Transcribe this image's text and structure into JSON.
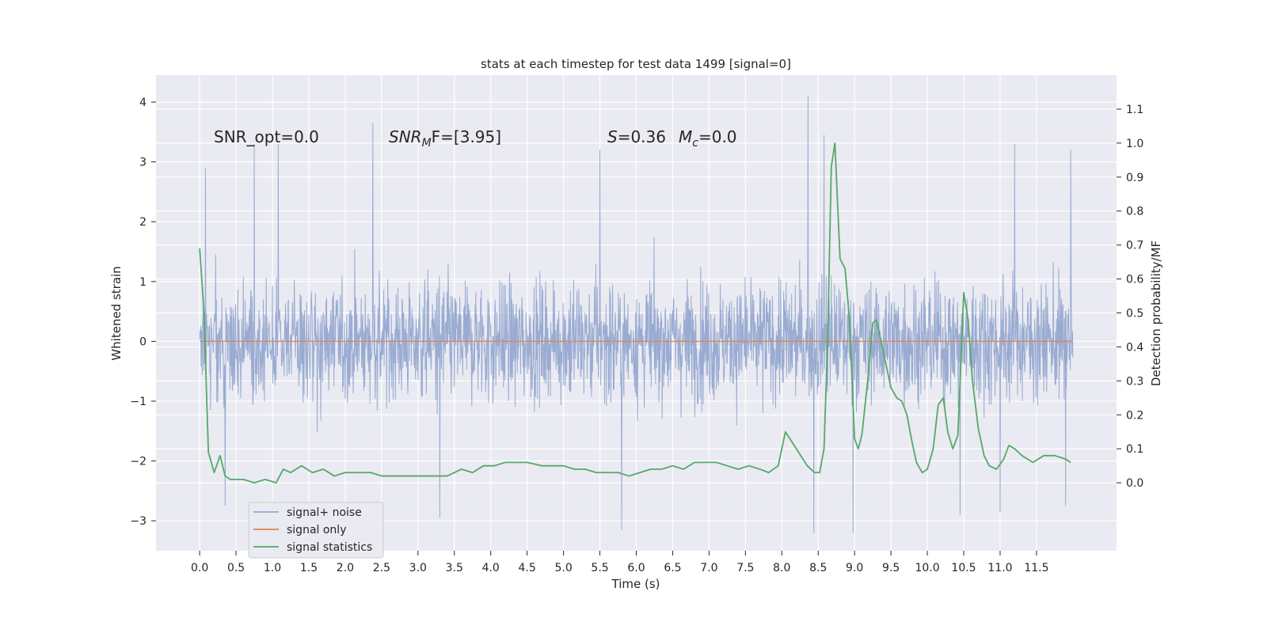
{
  "chart_data": {
    "type": "line",
    "title": "stats at each timestep for test data 1499 [signal=0]",
    "xlabel": "Time (s)",
    "ylabel": "Whitened strain",
    "ylabel_right": "Detection probability/MF",
    "xlim": [
      -0.6,
      12.6
    ],
    "ylim": [
      -3.5,
      4.45
    ],
    "ylim_right": [
      -0.2,
      1.2
    ],
    "xticks": [
      0.0,
      0.5,
      1.0,
      1.5,
      2.0,
      2.5,
      3.0,
      3.5,
      4.0,
      4.5,
      5.0,
      5.5,
      6.0,
      6.5,
      7.0,
      7.5,
      8.0,
      8.5,
      9.0,
      9.5,
      10.0,
      10.5,
      11.0,
      11.5
    ],
    "xtick_labels": [
      "0.0",
      "0.5",
      "1.0",
      "1.5",
      "2.0",
      "2.5",
      "3.0",
      "3.5",
      "4.0",
      "4.5",
      "5.0",
      "5.5",
      "6.0",
      "6.5",
      "7.0",
      "7.5",
      "8.0",
      "8.5",
      "9.0",
      "9.5",
      "10.0",
      "10.5",
      "11.0",
      "11.5"
    ],
    "yticks_left": [
      -3,
      -2,
      -1,
      0,
      1,
      2,
      3,
      4
    ],
    "ytick_labels_left": [
      "−3",
      "−2",
      "−1",
      "0",
      "1",
      "2",
      "3",
      "4"
    ],
    "yticks_right": [
      0.0,
      0.1,
      0.2,
      0.3,
      0.4,
      0.5,
      0.6,
      0.7,
      0.8,
      0.9,
      1.0,
      1.1
    ],
    "ytick_labels_right": [
      "0.0",
      "0.1",
      "0.2",
      "0.3",
      "0.4",
      "0.5",
      "0.6",
      "0.7",
      "0.8",
      "0.9",
      "1.0",
      "1.1"
    ],
    "grid": true,
    "legend_position": "lower-left",
    "annotations": {
      "snr_opt": "SNR_opt=0.0",
      "snr_mf_main": "SNR",
      "snr_mf_sub": "M",
      "snr_mf_tail": "F=[3.95]",
      "s_main": "S",
      "s_tail": "=0.36",
      "mc_main": "M",
      "mc_sub": "c",
      "mc_tail": "=0.0"
    },
    "noise_summary": {
      "name": "signal+ noise",
      "color": "#95a8cf",
      "x_start": 0.0,
      "x_end": 12.0,
      "dense_band": [
        -1.25,
        1.6
      ],
      "typical_extent": [
        -2.3,
        2.15
      ],
      "notable_peaks": [
        {
          "x": 0.08,
          "y": 2.9
        },
        {
          "x": 0.75,
          "y": 3.3
        },
        {
          "x": 1.08,
          "y": 3.3
        },
        {
          "x": 2.38,
          "y": 3.65
        },
        {
          "x": 5.5,
          "y": 3.2
        },
        {
          "x": 8.36,
          "y": 4.1
        },
        {
          "x": 8.58,
          "y": 3.45
        },
        {
          "x": 11.2,
          "y": 3.3
        },
        {
          "x": 11.97,
          "y": 3.2
        }
      ],
      "notable_troughs": [
        {
          "x": 0.35,
          "y": -2.75
        },
        {
          "x": 3.3,
          "y": -2.95
        },
        {
          "x": 5.8,
          "y": -3.15
        },
        {
          "x": 8.44,
          "y": -3.2
        },
        {
          "x": 8.98,
          "y": -3.2
        },
        {
          "x": 10.45,
          "y": -2.9
        },
        {
          "x": 11.0,
          "y": -2.85
        },
        {
          "x": 11.9,
          "y": -2.75
        }
      ]
    },
    "series": [
      {
        "name": "signal+ noise",
        "axis": "left",
        "color": "#95a8cf"
      },
      {
        "name": "signal only",
        "axis": "left",
        "color": "#dd8452",
        "x": [
          0.0,
          12.0
        ],
        "y": [
          0.0,
          0.0
        ]
      },
      {
        "name": "signal statistics",
        "axis": "right",
        "color": "#55a868",
        "x": [
          0.0,
          0.06,
          0.12,
          0.2,
          0.28,
          0.35,
          0.42,
          0.5,
          0.6,
          0.75,
          0.9,
          1.05,
          1.15,
          1.25,
          1.4,
          1.55,
          1.7,
          1.85,
          2.0,
          2.2,
          2.35,
          2.5,
          2.65,
          2.8,
          3.0,
          3.2,
          3.4,
          3.6,
          3.75,
          3.9,
          4.05,
          4.2,
          4.35,
          4.5,
          4.7,
          4.85,
          5.0,
          5.15,
          5.3,
          5.45,
          5.6,
          5.75,
          5.9,
          6.05,
          6.2,
          6.35,
          6.5,
          6.65,
          6.8,
          6.95,
          7.1,
          7.25,
          7.4,
          7.55,
          7.7,
          7.82,
          7.95,
          8.05,
          8.2,
          8.35,
          8.45,
          8.52,
          8.58,
          8.63,
          8.68,
          8.73,
          8.8,
          8.87,
          8.93,
          9.0,
          9.05,
          9.1,
          9.18,
          9.25,
          9.3,
          9.36,
          9.42,
          9.5,
          9.58,
          9.65,
          9.72,
          9.78,
          9.85,
          9.93,
          10.0,
          10.08,
          10.15,
          10.22,
          10.28,
          10.35,
          10.42,
          10.5,
          10.56,
          10.62,
          10.7,
          10.78,
          10.85,
          10.95,
          11.05,
          11.12,
          11.2,
          11.3,
          11.45,
          11.6,
          11.75,
          11.9,
          11.97
        ],
        "y": [
          0.69,
          0.5,
          0.09,
          0.03,
          0.08,
          0.02,
          0.01,
          0.01,
          0.01,
          0.0,
          0.01,
          0.0,
          0.04,
          0.03,
          0.05,
          0.03,
          0.04,
          0.02,
          0.03,
          0.03,
          0.03,
          0.02,
          0.02,
          0.02,
          0.02,
          0.02,
          0.02,
          0.04,
          0.03,
          0.05,
          0.05,
          0.06,
          0.06,
          0.06,
          0.05,
          0.05,
          0.05,
          0.04,
          0.04,
          0.03,
          0.03,
          0.03,
          0.02,
          0.03,
          0.04,
          0.04,
          0.05,
          0.04,
          0.06,
          0.06,
          0.06,
          0.05,
          0.04,
          0.05,
          0.04,
          0.03,
          0.05,
          0.15,
          0.1,
          0.05,
          0.03,
          0.03,
          0.1,
          0.42,
          0.93,
          1.0,
          0.66,
          0.63,
          0.48,
          0.13,
          0.1,
          0.14,
          0.3,
          0.47,
          0.48,
          0.42,
          0.36,
          0.28,
          0.25,
          0.24,
          0.2,
          0.13,
          0.06,
          0.03,
          0.04,
          0.1,
          0.23,
          0.25,
          0.15,
          0.1,
          0.14,
          0.56,
          0.48,
          0.3,
          0.16,
          0.08,
          0.05,
          0.04,
          0.07,
          0.11,
          0.1,
          0.08,
          0.06,
          0.08,
          0.08,
          0.07,
          0.06
        ]
      }
    ]
  }
}
